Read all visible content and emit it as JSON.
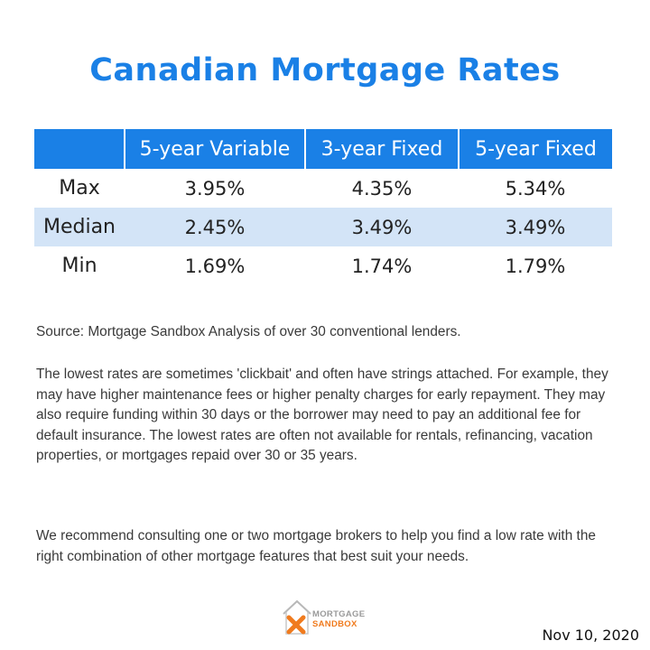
{
  "title": "Canadian Mortgage Rates",
  "colors": {
    "accent": "#1a80e6",
    "row_shade": "#d3e4f7",
    "logo_orange": "#f07b1e",
    "logo_gray": "#9a9a9a"
  },
  "table": {
    "columns": [
      "",
      "5-year Variable",
      "3-year Fixed",
      "5-year Fixed"
    ],
    "rows": [
      {
        "label": "Max",
        "values": [
          "3.95%",
          "4.35%",
          "5.34%"
        ]
      },
      {
        "label": "Median",
        "values": [
          "2.45%",
          "3.49%",
          "3.49%"
        ]
      },
      {
        "label": "Min",
        "values": [
          "1.69%",
          "1.74%",
          "1.79%"
        ]
      }
    ]
  },
  "source": "Source: Mortgage Sandbox Analysis of over 30 conventional lenders.",
  "paragraph1": "The lowest rates are sometimes 'clickbait' and often have strings attached. For example, they may have higher maintenance fees or higher penalty charges for early repayment.  They may also require funding within 30 days or the borrower may need to pay an additional fee for default insurance. The lowest rates are often not available for rentals, refinancing, vacation properties, or mortgages repaid over 30 or 35 years.",
  "paragraph2": "We recommend consulting one or two mortgage brokers to help you find a low rate with the right combination of other mortgage features that best suit your needs.",
  "logo": {
    "line1": "MORTGAGE",
    "line2": "SANDBOX",
    "icon": "house-x-logo-icon"
  },
  "date": "Nov 10, 2020"
}
